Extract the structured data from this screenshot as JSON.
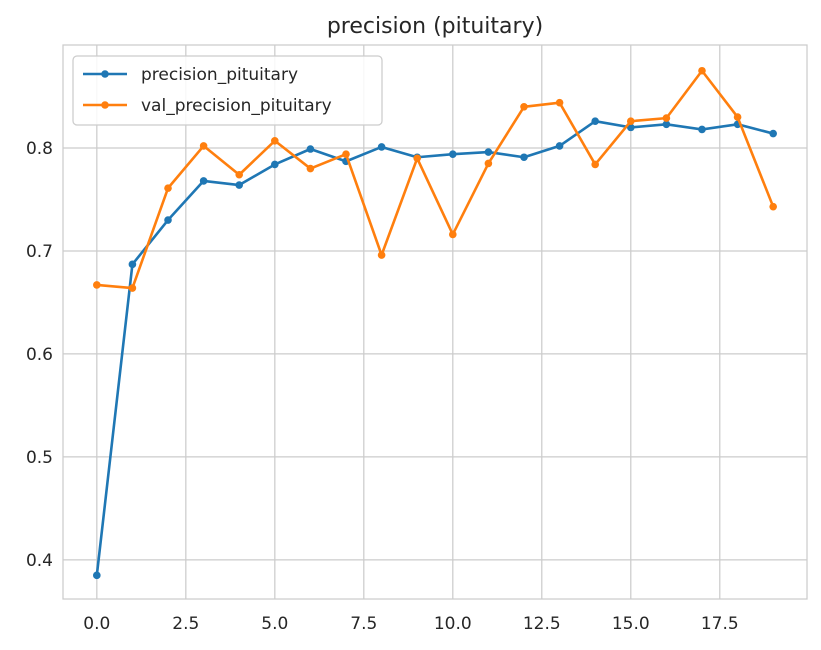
{
  "chart_data": {
    "type": "line",
    "title": "precision (pituitary)",
    "xlabel": "",
    "ylabel": "",
    "x": [
      0,
      1,
      2,
      3,
      4,
      5,
      6,
      7,
      8,
      9,
      10,
      11,
      12,
      13,
      14,
      15,
      16,
      17,
      18,
      19
    ],
    "xlim": [
      -0.95,
      19.95
    ],
    "ylim": [
      0.362,
      0.9
    ],
    "xticks": [
      0.0,
      2.5,
      5.0,
      7.5,
      10.0,
      12.5,
      15.0,
      17.5
    ],
    "xtick_labels": [
      "0.0",
      "2.5",
      "5.0",
      "7.5",
      "10.0",
      "12.5",
      "15.0",
      "17.5"
    ],
    "yticks": [
      0.4,
      0.5,
      0.6,
      0.7,
      0.8
    ],
    "ytick_labels": [
      "0.4",
      "0.5",
      "0.6",
      "0.7",
      "0.8"
    ],
    "grid": true,
    "legend_position": "top-left",
    "series": [
      {
        "name": "precision_pituitary",
        "color": "#1f77b4",
        "values": [
          0.385,
          0.687,
          0.73,
          0.768,
          0.764,
          0.784,
          0.799,
          0.787,
          0.801,
          0.791,
          0.794,
          0.796,
          0.791,
          0.802,
          0.826,
          0.82,
          0.823,
          0.818,
          0.823,
          0.814
        ]
      },
      {
        "name": "val_precision_pituitary",
        "color": "#ff7f0e",
        "values": [
          0.667,
          0.664,
          0.761,
          0.802,
          0.774,
          0.807,
          0.78,
          0.794,
          0.696,
          0.79,
          0.716,
          0.785,
          0.84,
          0.844,
          0.784,
          0.826,
          0.829,
          0.875,
          0.83,
          0.743
        ]
      }
    ]
  }
}
